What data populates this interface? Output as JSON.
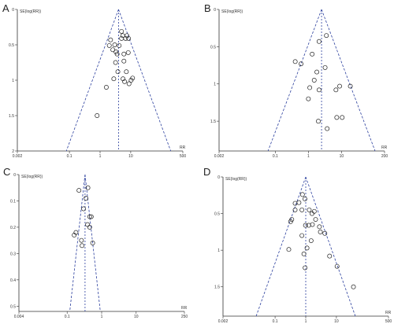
{
  "chart_data": [
    {
      "panel": "A",
      "type": "scatter",
      "xlabel": "RR",
      "ylabel": "SE(log(RR))",
      "x_scale": "log",
      "x_ticks": [
        0.002,
        0.1,
        1,
        10,
        500
      ],
      "x_tick_labels": [
        "0.002",
        "0.1",
        "1",
        "10",
        "500"
      ],
      "y_ticks": [
        0,
        0.5,
        1,
        1.5,
        2
      ],
      "y_tick_labels": [
        "0",
        "0.5",
        "1",
        "1.5",
        "2"
      ],
      "ylim": [
        0,
        2
      ],
      "pooled_rr": 4.0,
      "points": [
        {
          "x": 2.2,
          "y": 0.43
        },
        {
          "x": 5.0,
          "y": 0.31
        },
        {
          "x": 5.5,
          "y": 0.37
        },
        {
          "x": 5.0,
          "y": 0.41
        },
        {
          "x": 6.8,
          "y": 0.41
        },
        {
          "x": 7.5,
          "y": 0.37
        },
        {
          "x": 8.5,
          "y": 0.41
        },
        {
          "x": 3.0,
          "y": 0.5
        },
        {
          "x": 3.3,
          "y": 0.6
        },
        {
          "x": 2.0,
          "y": 0.51
        },
        {
          "x": 2.6,
          "y": 0.57
        },
        {
          "x": 4.2,
          "y": 0.51
        },
        {
          "x": 3.6,
          "y": 0.63
        },
        {
          "x": 6.0,
          "y": 0.63
        },
        {
          "x": 6.0,
          "y": 0.73
        },
        {
          "x": 8.3,
          "y": 0.61
        },
        {
          "x": 3.8,
          "y": 0.88
        },
        {
          "x": 3.2,
          "y": 0.75
        },
        {
          "x": 7.2,
          "y": 0.88
        },
        {
          "x": 2.8,
          "y": 0.98
        },
        {
          "x": 5.6,
          "y": 0.98
        },
        {
          "x": 6.3,
          "y": 1.02
        },
        {
          "x": 11.5,
          "y": 0.97
        },
        {
          "x": 0.8,
          "y": 1.5
        },
        {
          "x": 1.6,
          "y": 1.1
        },
        {
          "x": 10.3,
          "y": 1.0
        },
        {
          "x": 8.8,
          "y": 1.05
        }
      ]
    },
    {
      "panel": "B",
      "type": "scatter",
      "xlabel": "RR",
      "ylabel": "SE(log(RR))",
      "x_scale": "log",
      "x_ticks": [
        0.002,
        0.1,
        1,
        10,
        200
      ],
      "x_tick_labels": [
        "0.002",
        "0.1",
        "1",
        "10",
        "200"
      ],
      "y_ticks": [
        0,
        0.5,
        1,
        1.5
      ],
      "y_tick_labels": [
        "0",
        "0.5",
        "1",
        "1.5"
      ],
      "ylim": [
        0,
        1.9
      ],
      "pooled_rr": 2.5,
      "points": [
        {
          "x": 3.5,
          "y": 0.35
        },
        {
          "x": 2.1,
          "y": 0.43
        },
        {
          "x": 0.4,
          "y": 0.7
        },
        {
          "x": 0.6,
          "y": 0.73
        },
        {
          "x": 1.3,
          "y": 0.6
        },
        {
          "x": 3.2,
          "y": 0.78
        },
        {
          "x": 1.8,
          "y": 0.84
        },
        {
          "x": 1.5,
          "y": 0.95
        },
        {
          "x": 2.1,
          "y": 1.08
        },
        {
          "x": 6.8,
          "y": 1.08
        },
        {
          "x": 18.5,
          "y": 1.03
        },
        {
          "x": 8.8,
          "y": 1.03
        },
        {
          "x": 1.0,
          "y": 1.2
        },
        {
          "x": 2.0,
          "y": 1.5
        },
        {
          "x": 7.2,
          "y": 1.45
        },
        {
          "x": 3.7,
          "y": 1.6
        },
        {
          "x": 10.5,
          "y": 1.45
        },
        {
          "x": 1.1,
          "y": 1.05
        }
      ]
    },
    {
      "panel": "C",
      "type": "scatter",
      "xlabel": "RR",
      "ylabel": "SE(log(RR))",
      "x_scale": "log",
      "x_ticks": [
        0.004,
        0.1,
        1,
        10,
        250
      ],
      "x_tick_labels": [
        "0.004",
        "0.1",
        "1",
        "10",
        "250"
      ],
      "y_ticks": [
        0,
        0.1,
        0.2,
        0.3,
        0.4,
        0.5
      ],
      "y_tick_labels": [
        "0",
        "0.1",
        "0.2",
        "0.3",
        "0.4",
        "0.5"
      ],
      "ylim": [
        0,
        0.52
      ],
      "pooled_rr": 0.33,
      "points": [
        {
          "x": 0.26,
          "y": 0.25
        },
        {
          "x": 0.27,
          "y": 0.27
        },
        {
          "x": 0.18,
          "y": 0.22
        },
        {
          "x": 0.22,
          "y": 0.06
        },
        {
          "x": 0.39,
          "y": 0.19
        },
        {
          "x": 0.45,
          "y": 0.16
        },
        {
          "x": 0.5,
          "y": 0.16
        },
        {
          "x": 0.45,
          "y": 0.2
        },
        {
          "x": 0.55,
          "y": 0.26
        },
        {
          "x": 0.3,
          "y": 0.13
        },
        {
          "x": 0.35,
          "y": 0.09
        },
        {
          "x": 0.4,
          "y": 0.05
        },
        {
          "x": 0.16,
          "y": 0.23
        }
      ]
    },
    {
      "panel": "D",
      "type": "scatter",
      "xlabel": "RR",
      "ylabel": "SE(log(RR))",
      "x_scale": "log",
      "x_ticks": [
        0.002,
        0.1,
        1,
        10,
        500
      ],
      "x_tick_labels": [
        "0.002",
        "0.1",
        "1",
        "10",
        "500"
      ],
      "y_ticks": [
        0,
        0.5,
        1,
        1.5
      ],
      "y_tick_labels": [
        "0",
        "0.5",
        "1",
        "1.5"
      ],
      "ylim": [
        0,
        1.9
      ],
      "pooled_rr": 1.0,
      "points": [
        {
          "x": 0.78,
          "y": 0.24
        },
        {
          "x": 0.94,
          "y": 0.3
        },
        {
          "x": 0.45,
          "y": 0.36
        },
        {
          "x": 0.6,
          "y": 0.35
        },
        {
          "x": 0.45,
          "y": 0.45
        },
        {
          "x": 0.75,
          "y": 0.45
        },
        {
          "x": 1.3,
          "y": 0.45
        },
        {
          "x": 1.6,
          "y": 0.5
        },
        {
          "x": 1.9,
          "y": 0.47
        },
        {
          "x": 0.35,
          "y": 0.58
        },
        {
          "x": 0.32,
          "y": 0.61
        },
        {
          "x": 0.98,
          "y": 0.66
        },
        {
          "x": 1.25,
          "y": 0.66
        },
        {
          "x": 1.65,
          "y": 0.65
        },
        {
          "x": 2.8,
          "y": 0.68
        },
        {
          "x": 4.2,
          "y": 0.77
        },
        {
          "x": 3.0,
          "y": 0.75
        },
        {
          "x": 0.75,
          "y": 0.8
        },
        {
          "x": 1.5,
          "y": 0.87
        },
        {
          "x": 0.28,
          "y": 0.99
        },
        {
          "x": 0.87,
          "y": 1.05
        },
        {
          "x": 6.0,
          "y": 1.08
        },
        {
          "x": 1.1,
          "y": 0.97
        },
        {
          "x": 0.95,
          "y": 1.24
        },
        {
          "x": 36.0,
          "y": 1.5
        },
        {
          "x": 10.5,
          "y": 1.22
        },
        {
          "x": 2.1,
          "y": 0.58
        }
      ]
    }
  ]
}
